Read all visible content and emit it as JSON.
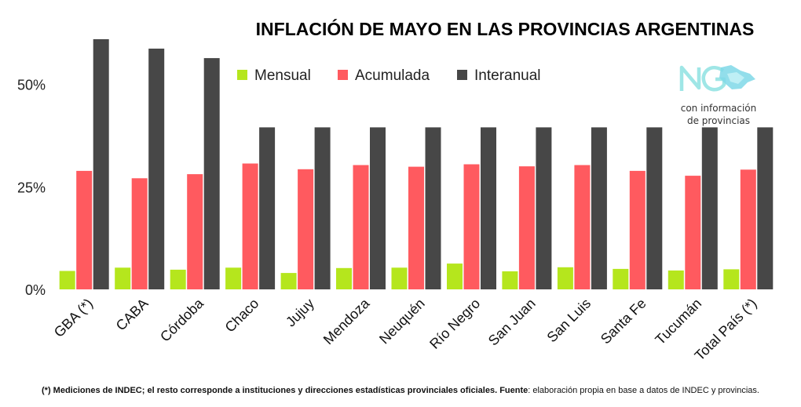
{
  "chart_data": {
    "type": "bar",
    "title": "INFLACIÓN DE MAYO EN LAS PROVINCIAS ARGENTINAS",
    "categories": [
      "GBA (*)",
      "CABA",
      "Córdoba",
      "Chaco",
      "Jujuy",
      "Mendoza",
      "Neuquén",
      "Río Negro",
      "San Juan",
      "San Luis",
      "Santa Fe",
      "Tucumán",
      "Total País (*)"
    ],
    "series": [
      {
        "name": "Mensual",
        "color": "#b5e61d",
        "values": [
          4.5,
          5.3,
          4.8,
          5.3,
          4.0,
          5.2,
          5.3,
          6.3,
          4.4,
          5.4,
          5.0,
          4.6,
          4.9
        ]
      },
      {
        "name": "Acumulada",
        "color": "#ff5a5f",
        "values": [
          28.9,
          27.1,
          28.1,
          30.7,
          29.3,
          30.3,
          29.9,
          30.5,
          30.0,
          30.3,
          28.9,
          27.7,
          29.2
        ]
      },
      {
        "name": "Interanual",
        "color": "#474747",
        "values": [
          61.0,
          58.7,
          56.4,
          39.5,
          39.5,
          39.5,
          39.5,
          39.5,
          39.5,
          39.5,
          39.5,
          39.5,
          39.5
        ]
      }
    ],
    "yticks": [
      "0%",
      "25%",
      "50%"
    ],
    "ytick_values": [
      0,
      25,
      50
    ],
    "ylim": [
      0,
      61
    ],
    "grid": false,
    "legend": "top-center"
  },
  "logo": {
    "caption_line1": "con información",
    "caption_line2": "de provincias"
  },
  "footnote": {
    "bold_part": "(*) Mediciones de INDEC; el resto corresponde a instituciones y direcciones estadísticas provinciales oficiales. Fuente",
    "rest": ": elaboración propia en base a datos de INDEC y provincias."
  }
}
